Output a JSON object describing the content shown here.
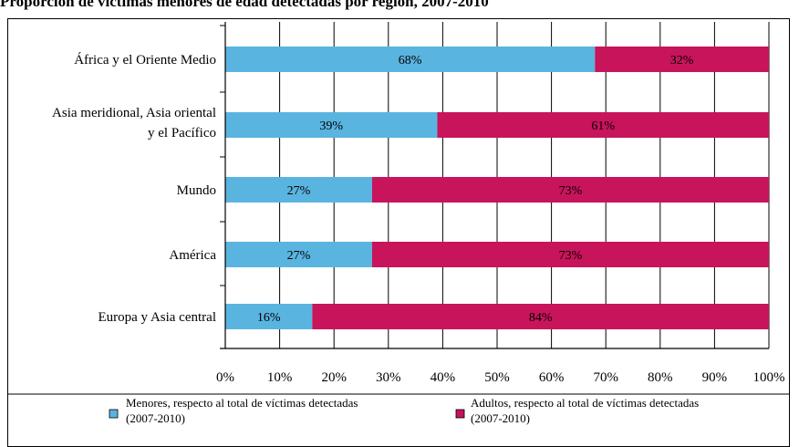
{
  "title": "Proporción de víctimas menores de edad detectadas por región, 2007-2010",
  "chart_data": {
    "type": "bar",
    "orientation": "horizontal",
    "stacked": true,
    "categories": [
      [
        "África y el Oriente Medio"
      ],
      [
        "Asia meridional, Asia oriental",
        "y el Pacífico"
      ],
      [
        "Mundo"
      ],
      [
        "América"
      ],
      [
        "Europa y Asia central"
      ]
    ],
    "series": [
      {
        "name": "Menores, respecto al total de víctimas detectadas (2007-2010)",
        "name_lines": [
          "Menores, respecto al total de víctimas detectadas",
          "(2007-2010)"
        ],
        "values": [
          68,
          39,
          27,
          27,
          16
        ],
        "labels": [
          "68%",
          "39%",
          "27%",
          "27%",
          "16%"
        ],
        "color": "#5ab4e0"
      },
      {
        "name": "Adultos, respecto al total de víctimas detectadas (2007-2010)",
        "name_lines": [
          "Adultos, respecto al total de víctimas detectadas",
          "(2007-2010)"
        ],
        "values": [
          32,
          61,
          73,
          73,
          84
        ],
        "labels": [
          "32%",
          "61%",
          "73%",
          "73%",
          "84%"
        ],
        "color": "#c8145a"
      }
    ],
    "xticks": [
      "0%",
      "10%",
      "20%",
      "30%",
      "40%",
      "50%",
      "60%",
      "70%",
      "80%",
      "90%",
      "100%"
    ],
    "xlim": [
      0,
      100
    ],
    "grid": true,
    "legend": "bottom"
  }
}
